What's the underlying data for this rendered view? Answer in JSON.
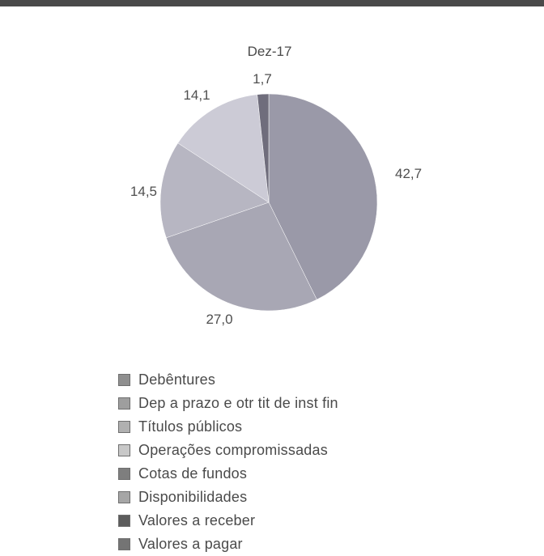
{
  "chart_data": {
    "type": "pie",
    "title": "Dez-17",
    "slices": [
      {
        "name": "Debêntures",
        "value": 42.7,
        "label": "42,7",
        "color": "#9a99a8"
      },
      {
        "name": "Dep a prazo e otr tit de inst fin",
        "value": 27.0,
        "label": "27,0",
        "color": "#a8a7b4"
      },
      {
        "name": "Títulos públicos",
        "value": 14.5,
        "label": "14,5",
        "color": "#b7b6c2"
      },
      {
        "name": "Operações compromissadas",
        "value": 14.1,
        "label": "14,1",
        "color": "#cccbd6"
      },
      {
        "name": "Cotas de fundos",
        "value": 0,
        "label": "",
        "color": "#808080"
      },
      {
        "name": "Disponibilidades",
        "value": 0,
        "label": "",
        "color": "#a0a0a0"
      },
      {
        "name": "Valores a receber",
        "value": 1.7,
        "label": "1,7",
        "color": "#6f6d7c"
      },
      {
        "name": "Valores a pagar",
        "value": 0,
        "label": "",
        "color": "#7a7a7a"
      }
    ],
    "legend": [
      {
        "label": "Debêntures",
        "color": "#8f8f8f"
      },
      {
        "label": "Dep a prazo e otr tit de inst fin",
        "color": "#9e9e9e"
      },
      {
        "label": "Títulos públicos",
        "color": "#b0b0b0"
      },
      {
        "label": "Operações compromissadas",
        "color": "#c8c8c8"
      },
      {
        "label": "Cotas de fundos",
        "color": "#7e7e7e"
      },
      {
        "label": "Disponibilidades",
        "color": "#a6a6a6"
      },
      {
        "label": "Valores a receber",
        "color": "#5c5c5c"
      },
      {
        "label": "Valores a pagar",
        "color": "#747474"
      }
    ],
    "legend_position": "bottom"
  }
}
